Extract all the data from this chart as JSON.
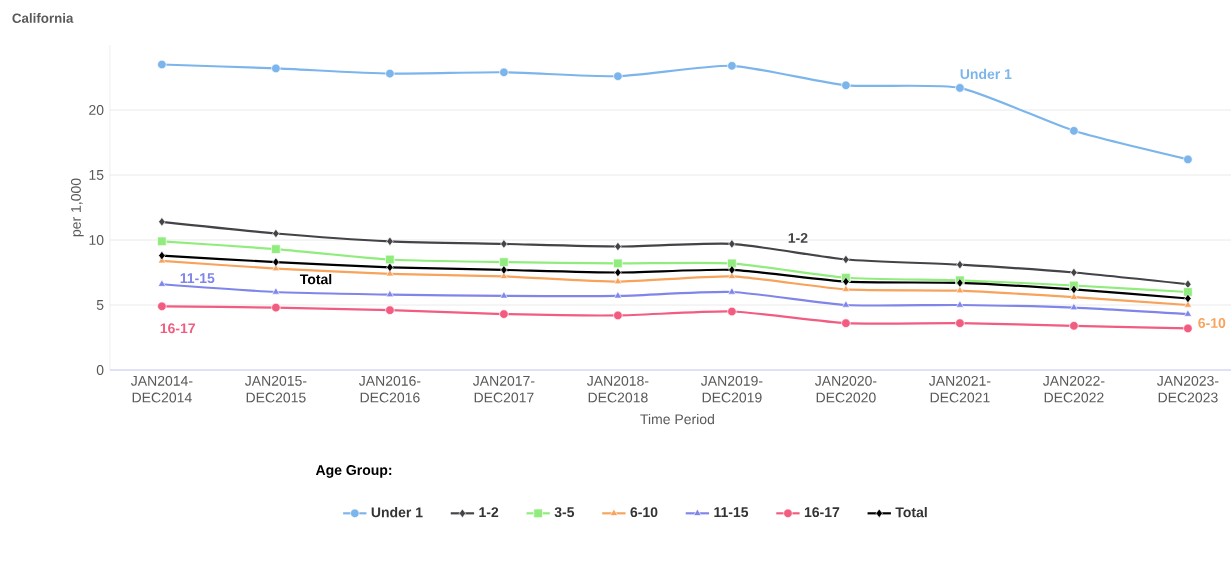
{
  "chart_data": {
    "type": "line",
    "title": "California",
    "xlabel": "Time Period",
    "ylabel": "per 1,000",
    "legend_title": "Age Group:",
    "categories": [
      "JAN2014-DEC2014",
      "JAN2015-DEC2015",
      "JAN2016-DEC2016",
      "JAN2017-DEC2017",
      "JAN2018-DEC2018",
      "JAN2019-DEC2019",
      "JAN2020-DEC2020",
      "JAN2021-DEC2021",
      "JAN2022-DEC2022",
      "JAN2023-DEC2023"
    ],
    "series": [
      {
        "name": "Under 1",
        "color": "#7cb5ec",
        "marker": "circle",
        "values": [
          23.5,
          23.2,
          22.8,
          22.9,
          22.6,
          23.4,
          21.9,
          21.7,
          18.4,
          16.2
        ]
      },
      {
        "name": "1-2",
        "color": "#434348",
        "marker": "diamond",
        "values": [
          11.4,
          10.5,
          9.9,
          9.7,
          9.5,
          9.7,
          8.5,
          8.1,
          7.5,
          6.6
        ]
      },
      {
        "name": "3-5",
        "color": "#90ed7d",
        "marker": "square",
        "values": [
          9.9,
          9.3,
          8.5,
          8.3,
          8.2,
          8.2,
          7.1,
          6.9,
          6.5,
          6.0
        ]
      },
      {
        "name": "6-10",
        "color": "#f7a35c",
        "marker": "triangle",
        "values": [
          8.4,
          7.8,
          7.4,
          7.2,
          6.8,
          7.2,
          6.2,
          6.1,
          5.6,
          5.0
        ]
      },
      {
        "name": "11-15",
        "color": "#8085e9",
        "marker": "triangle",
        "values": [
          6.6,
          6.0,
          5.8,
          5.7,
          5.7,
          6.0,
          5.0,
          5.0,
          4.8,
          4.3
        ]
      },
      {
        "name": "16-17",
        "color": "#f15c80",
        "marker": "circle",
        "values": [
          4.9,
          4.8,
          4.6,
          4.3,
          4.2,
          4.5,
          3.6,
          3.6,
          3.4,
          3.2
        ]
      },
      {
        "name": "Total",
        "color": "#000000",
        "marker": "diamond",
        "values": [
          8.8,
          8.3,
          7.9,
          7.7,
          7.5,
          7.7,
          6.8,
          6.7,
          6.2,
          5.5
        ]
      }
    ],
    "annotations": [
      "Under 1",
      "1-2",
      "11-15",
      "Total",
      "16-17",
      "6-10"
    ],
    "ylim": [
      0,
      25
    ],
    "yticks": [
      0,
      5,
      10,
      15,
      20
    ],
    "grid": "y",
    "legend": "bottom",
    "line_style": "solid"
  }
}
